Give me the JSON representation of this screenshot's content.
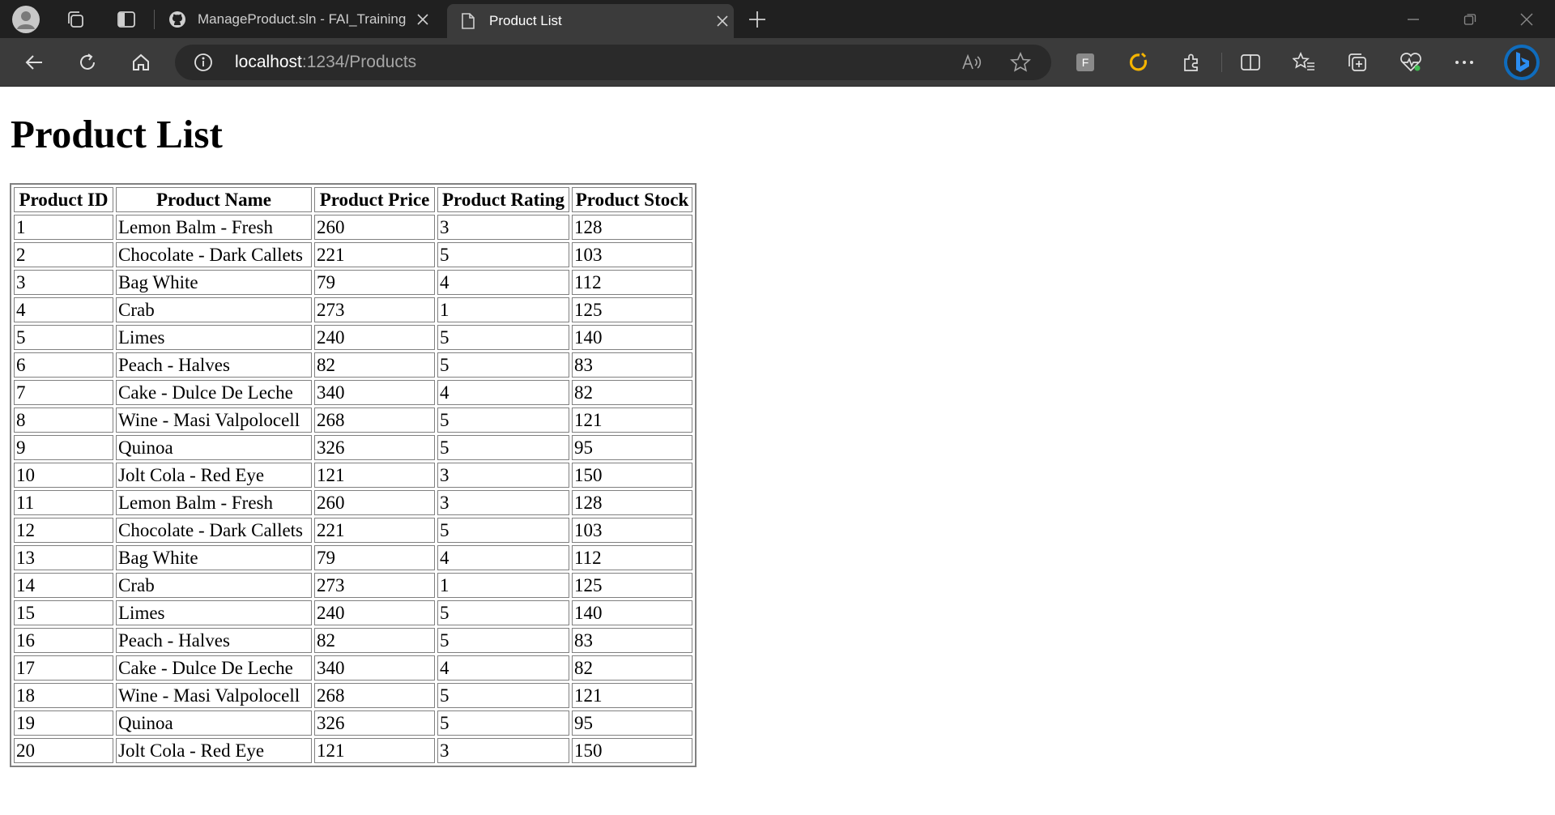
{
  "browser": {
    "tabs": [
      {
        "label": "ManageProduct.sln - FAI_Training",
        "icon": "github-icon",
        "active": false
      },
      {
        "label": "Product List",
        "icon": "page-icon",
        "active": true
      }
    ],
    "url_host": "localhost",
    "url_path": ":1234/Products",
    "accent_color": "#1a73e8"
  },
  "page": {
    "title": "Product List",
    "table": {
      "headers": [
        "Product ID",
        "Product Name",
        "Product Price",
        "Product Rating",
        "Product Stock"
      ],
      "rows": [
        [
          "1",
          "Lemon Balm - Fresh",
          "260",
          "3",
          "128"
        ],
        [
          "2",
          "Chocolate - Dark Callets",
          "221",
          "5",
          "103"
        ],
        [
          "3",
          "Bag White",
          "79",
          "4",
          "112"
        ],
        [
          "4",
          "Crab",
          "273",
          "1",
          "125"
        ],
        [
          "5",
          "Limes",
          "240",
          "5",
          "140"
        ],
        [
          "6",
          "Peach - Halves",
          "82",
          "5",
          "83"
        ],
        [
          "7",
          "Cake - Dulce De Leche",
          "340",
          "4",
          "82"
        ],
        [
          "8",
          "Wine - Masi Valpolocell",
          "268",
          "5",
          "121"
        ],
        [
          "9",
          "Quinoa",
          "326",
          "5",
          "95"
        ],
        [
          "10",
          "Jolt Cola - Red Eye",
          "121",
          "3",
          "150"
        ],
        [
          "11",
          "Lemon Balm - Fresh",
          "260",
          "3",
          "128"
        ],
        [
          "12",
          "Chocolate - Dark Callets",
          "221",
          "5",
          "103"
        ],
        [
          "13",
          "Bag White",
          "79",
          "4",
          "112"
        ],
        [
          "14",
          "Crab",
          "273",
          "1",
          "125"
        ],
        [
          "15",
          "Limes",
          "240",
          "5",
          "140"
        ],
        [
          "16",
          "Peach - Halves",
          "82",
          "5",
          "83"
        ],
        [
          "17",
          "Cake - Dulce De Leche",
          "340",
          "4",
          "82"
        ],
        [
          "18",
          "Wine - Masi Valpolocell",
          "268",
          "5",
          "121"
        ],
        [
          "19",
          "Quinoa",
          "326",
          "5",
          "95"
        ],
        [
          "20",
          "Jolt Cola - Red Eye",
          "121",
          "3",
          "150"
        ]
      ]
    }
  }
}
